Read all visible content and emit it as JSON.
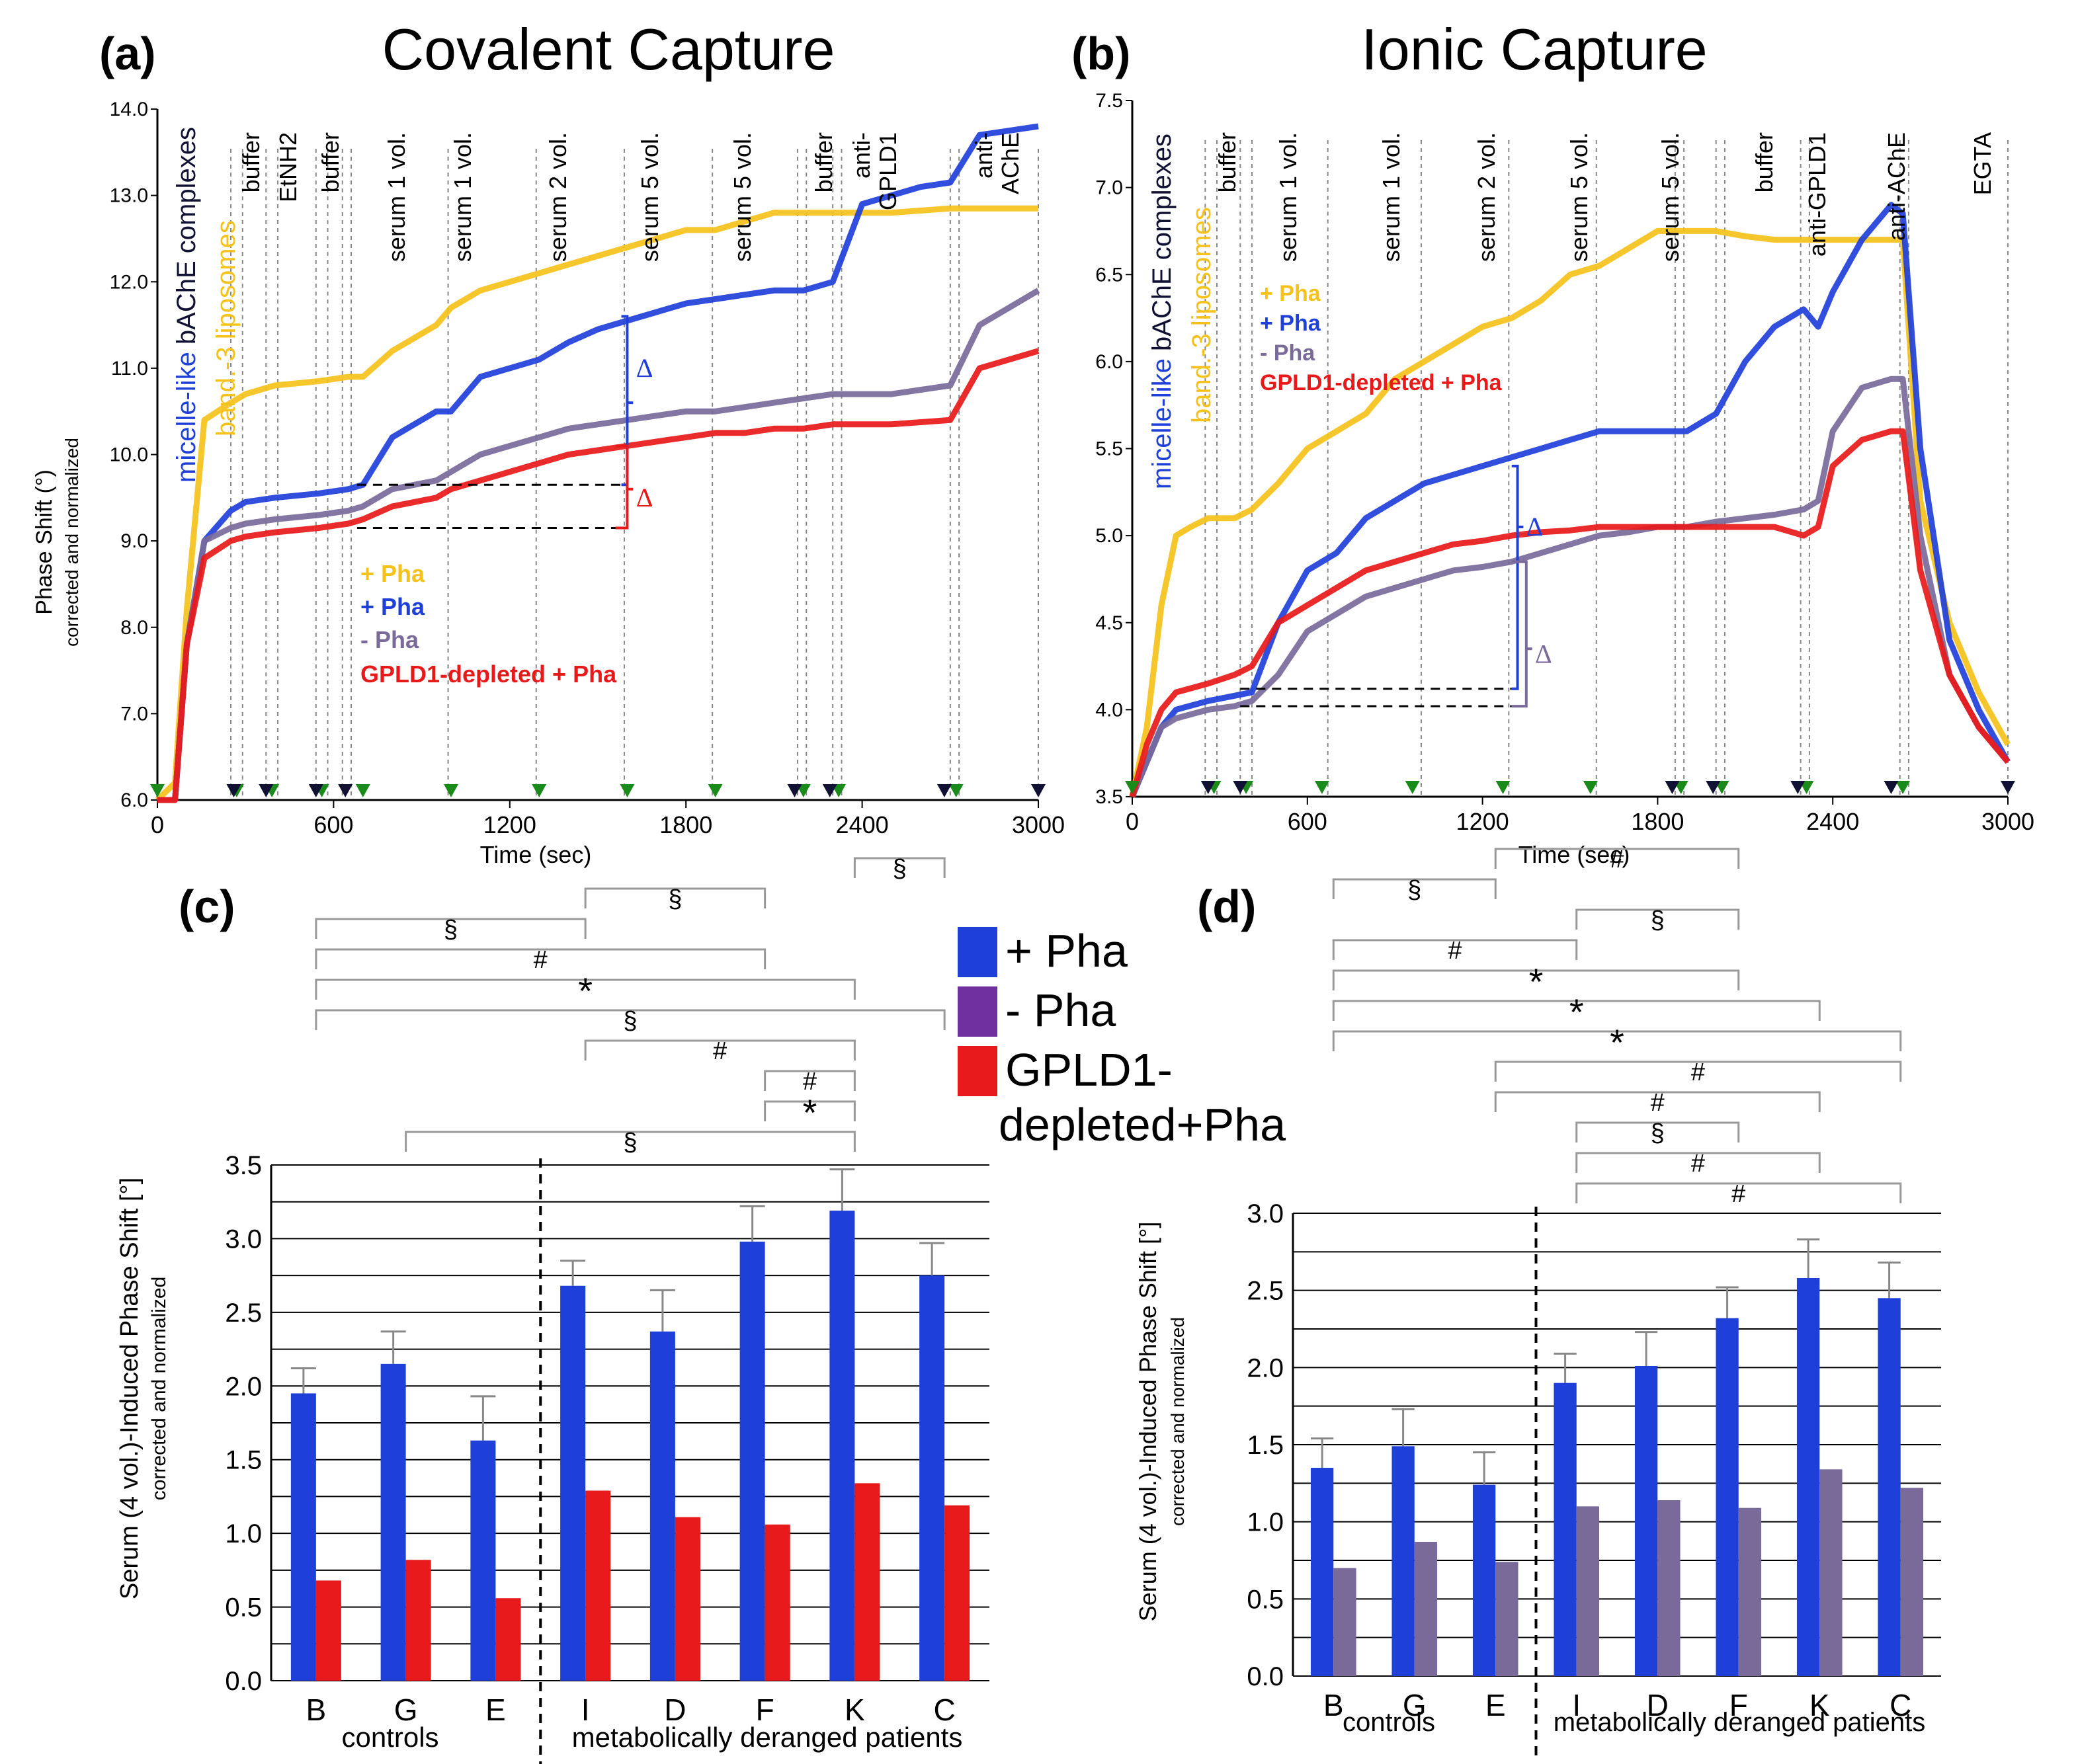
{
  "colors": {
    "yellow": "#f5c21b",
    "blue": "#1f3fd9",
    "purple": "#7a6a9a",
    "red": "#e8191a",
    "green": "#1a8a1a",
    "dark": "#111133",
    "grid": "#999999"
  },
  "chart_data": [
    {
      "id": "a",
      "type": "line",
      "panel_label": "(a)",
      "title": "Covalent Capture",
      "xlabel": "Time (sec)",
      "ylabel": "Phase Shift (°)",
      "ylabel2": "corrected and normalized",
      "xlim": [
        0,
        3000
      ],
      "ylim": [
        6.0,
        14.0
      ],
      "xticks": [
        "0",
        "600",
        "1200",
        "1800",
        "2400",
        "3000"
      ],
      "yticks": [
        "6.0",
        "7.0",
        "8.0",
        "9.0",
        "10.0",
        "11.0",
        "12.0",
        "13.0",
        "14.0"
      ],
      "side_labels": {
        "micelle": "micelle-like",
        "bache": " bAChE complexes",
        "band": "band.-3 liposomes"
      },
      "events": [
        "buffer",
        "EtNH2",
        "buffer",
        "serum 1 vol.",
        "serum 1 vol.",
        "serum 2 vol.",
        "serum 5 vol.",
        "serum 5 vol.",
        "buffer",
        "anti-",
        "GPLD1",
        "anti-",
        "AChE"
      ],
      "vlines": [
        250,
        290,
        370,
        410,
        540,
        580,
        630,
        660,
        990,
        1290,
        1590,
        1890,
        2180,
        2210,
        2300,
        2330,
        2700,
        2730,
        3000
      ],
      "green_markers": [
        0,
        270,
        390,
        560,
        700,
        1000,
        1300,
        1600,
        1900,
        2200,
        2320,
        2720
      ],
      "dark_markers": [
        260,
        370,
        540,
        640,
        2170,
        2290,
        2680,
        3000
      ],
      "legend": [
        "+ Pha",
        "+ Pha",
        "- Pha",
        "GPLD1-depleted + Pha"
      ],
      "delta": "Δ",
      "series": [
        {
          "name": "+ Pha (band.-3 liposomes)",
          "color": "yellow",
          "x": [
            0,
            60,
            100,
            160,
            250,
            300,
            400,
            550,
            650,
            700,
            800,
            950,
            1000,
            1100,
            1200,
            1300,
            1400,
            1500,
            1600,
            1700,
            1800,
            1900,
            2000,
            2100,
            2200,
            2300,
            2500,
            2700,
            3000
          ],
          "y": [
            6.0,
            6.2,
            8.2,
            10.4,
            10.6,
            10.7,
            10.8,
            10.85,
            10.9,
            10.9,
            11.2,
            11.5,
            11.7,
            11.9,
            12.0,
            12.1,
            12.2,
            12.3,
            12.4,
            12.5,
            12.6,
            12.6,
            12.7,
            12.8,
            12.8,
            12.8,
            12.8,
            12.85,
            12.85
          ]
        },
        {
          "name": "+ Pha",
          "color": "blue",
          "x": [
            0,
            60,
            100,
            160,
            250,
            300,
            400,
            550,
            650,
            700,
            800,
            950,
            1000,
            1100,
            1200,
            1300,
            1400,
            1500,
            1600,
            1700,
            1800,
            1900,
            2000,
            2100,
            2200,
            2300,
            2400,
            2500,
            2600,
            2700,
            2800,
            3000
          ],
          "y": [
            6.0,
            6.0,
            7.8,
            9.0,
            9.35,
            9.45,
            9.5,
            9.55,
            9.6,
            9.65,
            10.2,
            10.5,
            10.5,
            10.9,
            11.0,
            11.1,
            11.3,
            11.45,
            11.55,
            11.65,
            11.75,
            11.8,
            11.85,
            11.9,
            11.9,
            12.0,
            12.9,
            13.0,
            13.1,
            13.15,
            13.7,
            13.8
          ]
        },
        {
          "name": "- Pha",
          "color": "purple",
          "x": [
            0,
            60,
            100,
            160,
            250,
            300,
            400,
            550,
            650,
            700,
            800,
            950,
            1000,
            1100,
            1200,
            1300,
            1400,
            1500,
            1600,
            1700,
            1800,
            1900,
            2000,
            2100,
            2200,
            2300,
            2500,
            2700,
            2800,
            3000
          ],
          "y": [
            6.0,
            6.0,
            7.8,
            9.0,
            9.15,
            9.2,
            9.25,
            9.3,
            9.35,
            9.4,
            9.6,
            9.7,
            9.8,
            10.0,
            10.1,
            10.2,
            10.3,
            10.35,
            10.4,
            10.45,
            10.5,
            10.5,
            10.55,
            10.6,
            10.65,
            10.7,
            10.7,
            10.8,
            11.5,
            11.9
          ]
        },
        {
          "name": "GPLD1-depleted + Pha",
          "color": "red",
          "x": [
            0,
            60,
            100,
            160,
            250,
            300,
            400,
            550,
            650,
            700,
            800,
            950,
            1000,
            1100,
            1200,
            1300,
            1400,
            1500,
            1600,
            1700,
            1800,
            1900,
            2000,
            2100,
            2200,
            2300,
            2500,
            2700,
            2800,
            3000
          ],
          "y": [
            6.0,
            6.0,
            7.8,
            8.8,
            9.0,
            9.05,
            9.1,
            9.15,
            9.2,
            9.25,
            9.4,
            9.5,
            9.6,
            9.7,
            9.8,
            9.9,
            10.0,
            10.05,
            10.1,
            10.15,
            10.2,
            10.25,
            10.25,
            10.3,
            10.3,
            10.35,
            10.35,
            10.4,
            11.0,
            11.2
          ]
        }
      ]
    },
    {
      "id": "b",
      "type": "line",
      "panel_label": "(b)",
      "title": "Ionic Capture",
      "xlabel": "Time (sec)",
      "xlim": [
        0,
        3000
      ],
      "ylim": [
        3.5,
        7.5
      ],
      "xticks": [
        "0",
        "600",
        "1200",
        "1800",
        "2400",
        "3000"
      ],
      "yticks": [
        "3.5",
        "4.0",
        "4.5",
        "5.0",
        "5.5",
        "6.0",
        "6.5",
        "7.0",
        "7.5"
      ],
      "side_labels": {
        "micelle": "micelle-like",
        "bache": " bAChE complexes",
        "band": "band.-3 liposomes"
      },
      "events": [
        "buffer",
        "serum 1 vol.",
        "serum 1 vol.",
        "serum 2 vol.",
        "serum 5 vol.",
        "serum 5 vol.",
        "buffer",
        "anti-GPLD1",
        "anti-AChE",
        "EGTA"
      ],
      "vlines": [
        250,
        290,
        370,
        410,
        670,
        990,
        1290,
        1590,
        1860,
        1890,
        2000,
        2030,
        2290,
        2320,
        2630,
        2660,
        3000
      ],
      "green_markers": [
        0,
        280,
        390,
        650,
        960,
        1270,
        1570,
        1880,
        2020,
        2310,
        2640
      ],
      "dark_markers": [
        260,
        370,
        1850,
        1990,
        2280,
        2600,
        3000
      ],
      "legend": [
        "+ Pha",
        "+ Pha",
        "- Pha",
        "GPLD1-depleted + Pha"
      ],
      "delta": "Δ",
      "series": [
        {
          "name": "+ Pha (band.-3 liposomes)",
          "color": "yellow",
          "x": [
            0,
            50,
            100,
            150,
            200,
            260,
            350,
            410,
            500,
            600,
            700,
            800,
            900,
            1000,
            1100,
            1200,
            1300,
            1400,
            1500,
            1600,
            1700,
            1800,
            1900,
            2000,
            2100,
            2200,
            2300,
            2400,
            2500,
            2600,
            2640,
            2700,
            2800,
            2900,
            3000
          ],
          "y": [
            3.5,
            3.9,
            4.6,
            5.0,
            5.05,
            5.1,
            5.1,
            5.15,
            5.3,
            5.5,
            5.6,
            5.7,
            5.9,
            6.0,
            6.1,
            6.2,
            6.25,
            6.35,
            6.5,
            6.55,
            6.65,
            6.75,
            6.75,
            6.75,
            6.72,
            6.7,
            6.7,
            6.7,
            6.7,
            6.7,
            6.7,
            5.2,
            4.5,
            4.1,
            3.8
          ]
        },
        {
          "name": "+ Pha",
          "color": "blue",
          "x": [
            0,
            50,
            100,
            150,
            260,
            350,
            410,
            500,
            600,
            700,
            800,
            900,
            1000,
            1100,
            1200,
            1300,
            1400,
            1500,
            1600,
            1700,
            1800,
            1900,
            2000,
            2100,
            2200,
            2300,
            2350,
            2400,
            2500,
            2600,
            2640,
            2700,
            2800,
            2900,
            3000
          ],
          "y": [
            3.5,
            3.7,
            3.9,
            4.0,
            4.05,
            4.08,
            4.1,
            4.5,
            4.8,
            4.9,
            5.1,
            5.2,
            5.3,
            5.35,
            5.4,
            5.45,
            5.5,
            5.55,
            5.6,
            5.6,
            5.6,
            5.6,
            5.7,
            6.0,
            6.2,
            6.3,
            6.2,
            6.4,
            6.7,
            6.9,
            6.85,
            5.5,
            4.4,
            4.0,
            3.7
          ]
        },
        {
          "name": "- Pha",
          "color": "purple",
          "x": [
            0,
            50,
            100,
            150,
            260,
            350,
            410,
            500,
            600,
            700,
            800,
            900,
            1000,
            1100,
            1200,
            1300,
            1400,
            1500,
            1600,
            1700,
            1800,
            1900,
            2000,
            2100,
            2200,
            2300,
            2350,
            2400,
            2500,
            2600,
            2640,
            2700,
            2800,
            2900,
            3000
          ],
          "y": [
            3.5,
            3.7,
            3.9,
            3.95,
            4.0,
            4.02,
            4.05,
            4.2,
            4.45,
            4.55,
            4.65,
            4.7,
            4.75,
            4.8,
            4.82,
            4.85,
            4.9,
            4.95,
            5.0,
            5.02,
            5.05,
            5.05,
            5.08,
            5.1,
            5.12,
            5.15,
            5.2,
            5.6,
            5.85,
            5.9,
            5.9,
            5.0,
            4.2,
            3.9,
            3.7
          ]
        },
        {
          "name": "GPLD1-depleted + Pha",
          "color": "red",
          "x": [
            0,
            50,
            100,
            150,
            260,
            350,
            410,
            500,
            600,
            700,
            800,
            900,
            1000,
            1100,
            1200,
            1300,
            1400,
            1500,
            1600,
            1700,
            1800,
            1900,
            2000,
            2100,
            2200,
            2300,
            2350,
            2400,
            2500,
            2600,
            2640,
            2700,
            2800,
            2900,
            3000
          ],
          "y": [
            3.5,
            3.8,
            4.0,
            4.1,
            4.15,
            4.2,
            4.25,
            4.5,
            4.6,
            4.7,
            4.8,
            4.85,
            4.9,
            4.95,
            4.97,
            5.0,
            5.02,
            5.03,
            5.05,
            5.05,
            5.05,
            5.05,
            5.05,
            5.05,
            5.05,
            5.0,
            5.05,
            5.4,
            5.55,
            5.6,
            5.6,
            4.8,
            4.2,
            3.9,
            3.7
          ]
        }
      ]
    },
    {
      "id": "c",
      "type": "bar",
      "panel_label": "(c)",
      "ylabel": "Serum (4 vol.)-Induced Phase Shift [°]",
      "ylabel2": "corrected and normalized",
      "ylim": [
        0,
        3.5
      ],
      "yticks": [
        "0.0",
        "0.5",
        "1.0",
        "1.5",
        "2.0",
        "2.5",
        "3.0",
        "3.5"
      ],
      "categories": [
        "B",
        "G",
        "E",
        "I",
        "D",
        "F",
        "K",
        "C"
      ],
      "groups": [
        "controls",
        "metabolically deranged patients"
      ],
      "series": [
        {
          "name": "+ Pha",
          "color": "blue",
          "values": [
            1.95,
            2.15,
            1.63,
            2.68,
            2.37,
            2.98,
            3.19,
            2.75
          ],
          "errors": [
            0.17,
            0.22,
            0.3,
            0.17,
            0.28,
            0.24,
            0.28,
            0.22
          ]
        },
        {
          "name": "GPLD1-depleted+Pha",
          "color": "red",
          "values": [
            0.68,
            0.82,
            0.56,
            1.29,
            1.11,
            1.06,
            1.34,
            1.19
          ],
          "errors": [
            0,
            0,
            0,
            0,
            0,
            0,
            0,
            0
          ]
        }
      ],
      "significance": [
        {
          "from": 1,
          "to": 6,
          "sym": "§"
        },
        {
          "from": 5,
          "to": 6,
          "sym": "*"
        },
        {
          "from": 5,
          "to": 6,
          "sym": "#"
        },
        {
          "from": 3,
          "to": 6,
          "sym": "#"
        },
        {
          "from": 0,
          "to": 7,
          "sym": "§"
        },
        {
          "from": 0,
          "to": 6,
          "sym": "*"
        },
        {
          "from": 0,
          "to": 5,
          "sym": "#"
        },
        {
          "from": 0,
          "to": 3,
          "sym": "§"
        },
        {
          "from": 3,
          "to": 5,
          "sym": "§"
        },
        {
          "from": 6,
          "to": 7,
          "sym": "§"
        }
      ]
    },
    {
      "id": "d",
      "type": "bar",
      "panel_label": "(d)",
      "ylabel": "Serum (4 vol.)-Induced Phase Shift [°]",
      "ylabel2": "corrected and normalized",
      "ylim": [
        0,
        3.0
      ],
      "yticks": [
        "0.0",
        "0.5",
        "1.0",
        "1.5",
        "2.0",
        "2.5",
        "3.0"
      ],
      "categories": [
        "B",
        "G",
        "E",
        "I",
        "D",
        "F",
        "K",
        "C"
      ],
      "groups": [
        "controls",
        "metabolically deranged patients"
      ],
      "series": [
        {
          "name": "+ Pha",
          "color": "blue",
          "values": [
            1.35,
            1.49,
            1.24,
            1.9,
            2.01,
            2.32,
            2.58,
            2.45
          ],
          "errors": [
            0.19,
            0.24,
            0.21,
            0.19,
            0.22,
            0.2,
            0.25,
            0.23
          ]
        },
        {
          "name": "- Pha",
          "color": "purple",
          "values": [
            0.7,
            0.87,
            0.74,
            1.1,
            1.14,
            1.09,
            1.34,
            1.22
          ],
          "errors": [
            0,
            0,
            0,
            0,
            0,
            0,
            0,
            0
          ]
        }
      ],
      "significance": [
        {
          "from": 3,
          "to": 7,
          "sym": "#"
        },
        {
          "from": 3,
          "to": 6,
          "sym": "#"
        },
        {
          "from": 3,
          "to": 5,
          "sym": "§"
        },
        {
          "from": 2,
          "to": 6,
          "sym": "#"
        },
        {
          "from": 2,
          "to": 7,
          "sym": "#"
        },
        {
          "from": 0,
          "to": 7,
          "sym": "*"
        },
        {
          "from": 0,
          "to": 6,
          "sym": "*"
        },
        {
          "from": 0,
          "to": 5,
          "sym": "*"
        },
        {
          "from": 0,
          "to": 3,
          "sym": "#"
        },
        {
          "from": 3,
          "to": 5,
          "sym": "§"
        },
        {
          "from": 0,
          "to": 2,
          "sym": "§"
        },
        {
          "from": 2,
          "to": 5,
          "sym": "#"
        }
      ]
    }
  ],
  "legend_cd": [
    {
      "label": "+ Pha",
      "color": "blue"
    },
    {
      "label": "-  Pha",
      "color": "purple"
    },
    {
      "label": "GPLD1-",
      "label2": "depleted+Pha",
      "color": "red"
    }
  ]
}
